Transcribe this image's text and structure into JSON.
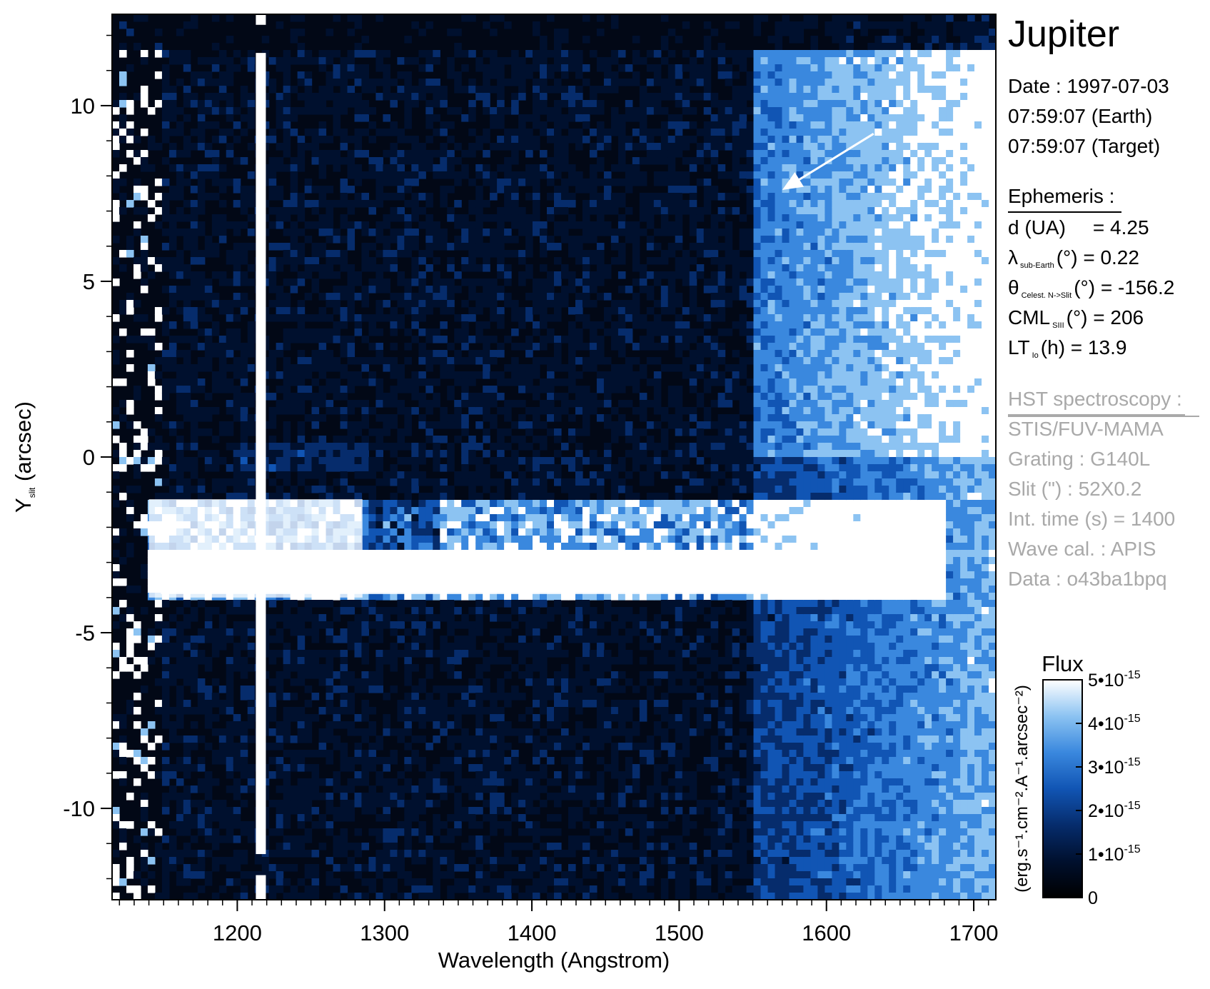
{
  "colors": {
    "background": "#ffffff",
    "plot_background": "#020816",
    "colormap": [
      "#000000",
      "#00102e",
      "#062c6c",
      "#1155b4",
      "#3a88de",
      "#8cc3f2",
      "#ffffff"
    ],
    "info_grey": "#a9a9a9",
    "arrow": "#ffffff"
  },
  "chart_data": {
    "type": "heatmap",
    "xlabel": "Wavelength (Angstrom)",
    "ylabel_main": "Y",
    "ylabel_sub": "slit",
    "ylabel_rest": " (arcsec)",
    "xlim": [
      1115,
      1715
    ],
    "ylim": [
      -12.6,
      12.6
    ],
    "x_ticks": [
      1200,
      1300,
      1400,
      1500,
      1600,
      1700
    ],
    "y_ticks": [
      10,
      5,
      0,
      -5,
      -10
    ],
    "x_tick_labels": [
      "1200",
      "1300",
      "1400",
      "1500",
      "1600",
      "1700"
    ],
    "y_tick_labels": [
      "10",
      "5",
      "0",
      "-5",
      "-10"
    ],
    "features": {
      "lyman_alpha_wavelength": 1216,
      "emission_band_y_center": -3.2,
      "emission_band_y_range": [
        -4.0,
        -1.2
      ],
      "emission_band_x_range": [
        1140,
        1680
      ],
      "bright_continuum_x_start": 1550,
      "bright_continuum_y_range": [
        0,
        11.5
      ]
    },
    "arrow": {
      "from": [
        1632,
        9.2
      ],
      "to": [
        1570,
        7.6
      ]
    },
    "colorbar": {
      "title": "Flux",
      "unit_label": "(erg.s⁻¹.cm⁻².A⁻¹.arcsec⁻²)",
      "range": [
        0,
        5e-15
      ],
      "tick_values": [
        0,
        1e-15,
        2e-15,
        3e-15,
        4e-15,
        5e-15
      ],
      "tick_labels": [
        {
          "base": "0",
          "exp": ""
        },
        {
          "base": "1•10",
          "exp": "-15"
        },
        {
          "base": "2•10",
          "exp": "-15"
        },
        {
          "base": "3•10",
          "exp": "-15"
        },
        {
          "base": "4•10",
          "exp": "-15"
        },
        {
          "base": "5•10",
          "exp": "-15"
        }
      ]
    }
  },
  "info": {
    "target": "Jupiter",
    "date_line": "Date : 1997-07-03",
    "time_earth": "07:59:07 (Earth)",
    "time_target": "07:59:07 (Target)",
    "ephemeris_header": "Ephemeris :",
    "d_label": "d (UA)",
    "d_value": "= 4.25",
    "lambda_symbol": "λ",
    "lambda_sub": "sub-Earth",
    "lambda_rest": "(°)  = 0.22",
    "theta_symbol": "θ",
    "theta_sub": "Celest. N->Slit",
    "theta_rest": "(°) = -156.2",
    "cml_symbol": "CML",
    "cml_sub": "SIII",
    "cml_rest": "(°) = 206",
    "lt_symbol": "LT",
    "lt_sub": "Io",
    "lt_rest": "(h) = 13.9",
    "hst_header": "HST spectroscopy :",
    "instrument": "STIS/FUV-MAMA",
    "grating": "Grating : G140L",
    "slit": "Slit (\") : 52X0.2",
    "int_time": "Int. time (s) = 1400",
    "wave_cal": "Wave cal. : APIS",
    "data_id": "Data : o43ba1bpq"
  }
}
